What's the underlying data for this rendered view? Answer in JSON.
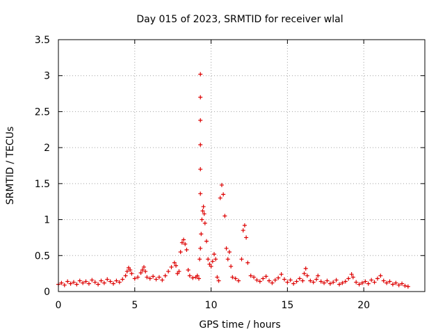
{
  "chart_data": {
    "type": "scatter",
    "title": "Day 015 of 2023, SRMTID for receiver wlal",
    "xlabel": "GPS time / hours",
    "ylabel": "SRMTID / TECUs",
    "xlim": [
      0,
      24
    ],
    "ylim": [
      0,
      3.5
    ],
    "xticks": [
      0,
      5,
      10,
      15,
      20
    ],
    "xtick_labels": [
      "0",
      "5",
      "10",
      "15",
      "20"
    ],
    "yticks": [
      0,
      0.5,
      1,
      1.5,
      2,
      2.5,
      3,
      3.5
    ],
    "ytick_labels": [
      "0",
      "0.5",
      "1",
      "1.5",
      "2",
      "2.5",
      "3",
      "3.5"
    ],
    "grid": true,
    "marker": "+",
    "color": "#dd0000",
    "series": [
      {
        "name": "SRMTID",
        "points": [
          [
            0.0,
            0.1
          ],
          [
            0.2,
            0.12
          ],
          [
            0.4,
            0.09
          ],
          [
            0.6,
            0.14
          ],
          [
            0.8,
            0.11
          ],
          [
            1.0,
            0.13
          ],
          [
            1.2,
            0.1
          ],
          [
            1.4,
            0.15
          ],
          [
            1.6,
            0.12
          ],
          [
            1.8,
            0.14
          ],
          [
            2.0,
            0.11
          ],
          [
            2.2,
            0.16
          ],
          [
            2.4,
            0.13
          ],
          [
            2.6,
            0.1
          ],
          [
            2.8,
            0.15
          ],
          [
            3.0,
            0.12
          ],
          [
            3.2,
            0.17
          ],
          [
            3.4,
            0.14
          ],
          [
            3.6,
            0.11
          ],
          [
            3.8,
            0.15
          ],
          [
            4.0,
            0.13
          ],
          [
            4.2,
            0.17
          ],
          [
            4.4,
            0.22
          ],
          [
            4.5,
            0.28
          ],
          [
            4.6,
            0.33
          ],
          [
            4.7,
            0.3
          ],
          [
            4.8,
            0.25
          ],
          [
            5.0,
            0.18
          ],
          [
            5.2,
            0.2
          ],
          [
            5.4,
            0.26
          ],
          [
            5.5,
            0.3
          ],
          [
            5.6,
            0.34
          ],
          [
            5.7,
            0.28
          ],
          [
            5.8,
            0.2
          ],
          [
            6.0,
            0.18
          ],
          [
            6.2,
            0.21
          ],
          [
            6.4,
            0.17
          ],
          [
            6.6,
            0.2
          ],
          [
            6.8,
            0.16
          ],
          [
            7.0,
            0.22
          ],
          [
            7.2,
            0.28
          ],
          [
            7.4,
            0.34
          ],
          [
            7.6,
            0.4
          ],
          [
            7.7,
            0.36
          ],
          [
            7.8,
            0.25
          ],
          [
            7.9,
            0.28
          ],
          [
            8.0,
            0.55
          ],
          [
            8.1,
            0.68
          ],
          [
            8.2,
            0.72
          ],
          [
            8.3,
            0.66
          ],
          [
            8.4,
            0.58
          ],
          [
            8.5,
            0.3
          ],
          [
            8.6,
            0.22
          ],
          [
            8.8,
            0.19
          ],
          [
            9.0,
            0.2
          ],
          [
            9.1,
            0.22
          ],
          [
            9.2,
            0.18
          ],
          [
            9.25,
            0.45
          ],
          [
            9.3,
            0.6
          ],
          [
            9.35,
            0.8
          ],
          [
            9.4,
            1.0
          ],
          [
            9.45,
            1.12
          ],
          [
            9.5,
            1.18
          ],
          [
            9.55,
            1.08
          ],
          [
            9.6,
            0.95
          ],
          [
            9.7,
            0.7
          ],
          [
            9.8,
            0.45
          ],
          [
            9.9,
            0.38
          ],
          [
            10.0,
            0.35
          ],
          [
            10.1,
            0.42
          ],
          [
            10.2,
            0.52
          ],
          [
            10.3,
            0.45
          ],
          [
            10.4,
            0.2
          ],
          [
            10.5,
            0.15
          ],
          [
            10.6,
            1.3
          ],
          [
            10.7,
            1.48
          ],
          [
            10.8,
            1.35
          ],
          [
            10.9,
            1.05
          ],
          [
            11.0,
            0.6
          ],
          [
            11.1,
            0.45
          ],
          [
            11.2,
            0.55
          ],
          [
            11.3,
            0.35
          ],
          [
            11.4,
            0.2
          ],
          [
            11.6,
            0.18
          ],
          [
            11.8,
            0.15
          ],
          [
            12.0,
            0.45
          ],
          [
            12.1,
            0.85
          ],
          [
            12.2,
            0.92
          ],
          [
            12.3,
            0.75
          ],
          [
            12.4,
            0.4
          ],
          [
            12.6,
            0.22
          ],
          [
            12.8,
            0.2
          ],
          [
            13.0,
            0.16
          ],
          [
            13.2,
            0.14
          ],
          [
            13.4,
            0.18
          ],
          [
            13.6,
            0.21
          ],
          [
            13.8,
            0.15
          ],
          [
            14.0,
            0.12
          ],
          [
            14.2,
            0.16
          ],
          [
            14.4,
            0.19
          ],
          [
            14.6,
            0.24
          ],
          [
            14.8,
            0.17
          ],
          [
            15.0,
            0.13
          ],
          [
            15.2,
            0.16
          ],
          [
            15.4,
            0.11
          ],
          [
            15.6,
            0.14
          ],
          [
            15.8,
            0.18
          ],
          [
            16.0,
            0.15
          ],
          [
            16.1,
            0.25
          ],
          [
            16.2,
            0.32
          ],
          [
            16.3,
            0.22
          ],
          [
            16.5,
            0.15
          ],
          [
            16.7,
            0.13
          ],
          [
            16.9,
            0.17
          ],
          [
            17.0,
            0.22
          ],
          [
            17.2,
            0.14
          ],
          [
            17.4,
            0.12
          ],
          [
            17.6,
            0.15
          ],
          [
            17.8,
            0.11
          ],
          [
            18.0,
            0.13
          ],
          [
            18.2,
            0.16
          ],
          [
            18.4,
            0.1
          ],
          [
            18.6,
            0.12
          ],
          [
            18.8,
            0.14
          ],
          [
            19.0,
            0.18
          ],
          [
            19.2,
            0.24
          ],
          [
            19.3,
            0.2
          ],
          [
            19.5,
            0.13
          ],
          [
            19.7,
            0.1
          ],
          [
            19.9,
            0.12
          ],
          [
            20.1,
            0.14
          ],
          [
            20.3,
            0.11
          ],
          [
            20.5,
            0.16
          ],
          [
            20.7,
            0.13
          ],
          [
            20.9,
            0.18
          ],
          [
            21.1,
            0.22
          ],
          [
            21.3,
            0.15
          ],
          [
            21.5,
            0.12
          ],
          [
            21.7,
            0.14
          ],
          [
            21.9,
            0.1
          ],
          [
            22.1,
            0.12
          ],
          [
            22.3,
            0.09
          ],
          [
            22.5,
            0.11
          ],
          [
            22.7,
            0.08
          ],
          [
            22.9,
            0.07
          ],
          [
            9.3,
            3.02
          ],
          [
            9.3,
            2.7
          ],
          [
            9.3,
            2.38
          ],
          [
            9.3,
            2.04
          ],
          [
            9.3,
            1.7
          ],
          [
            9.3,
            1.36
          ]
        ]
      }
    ]
  }
}
